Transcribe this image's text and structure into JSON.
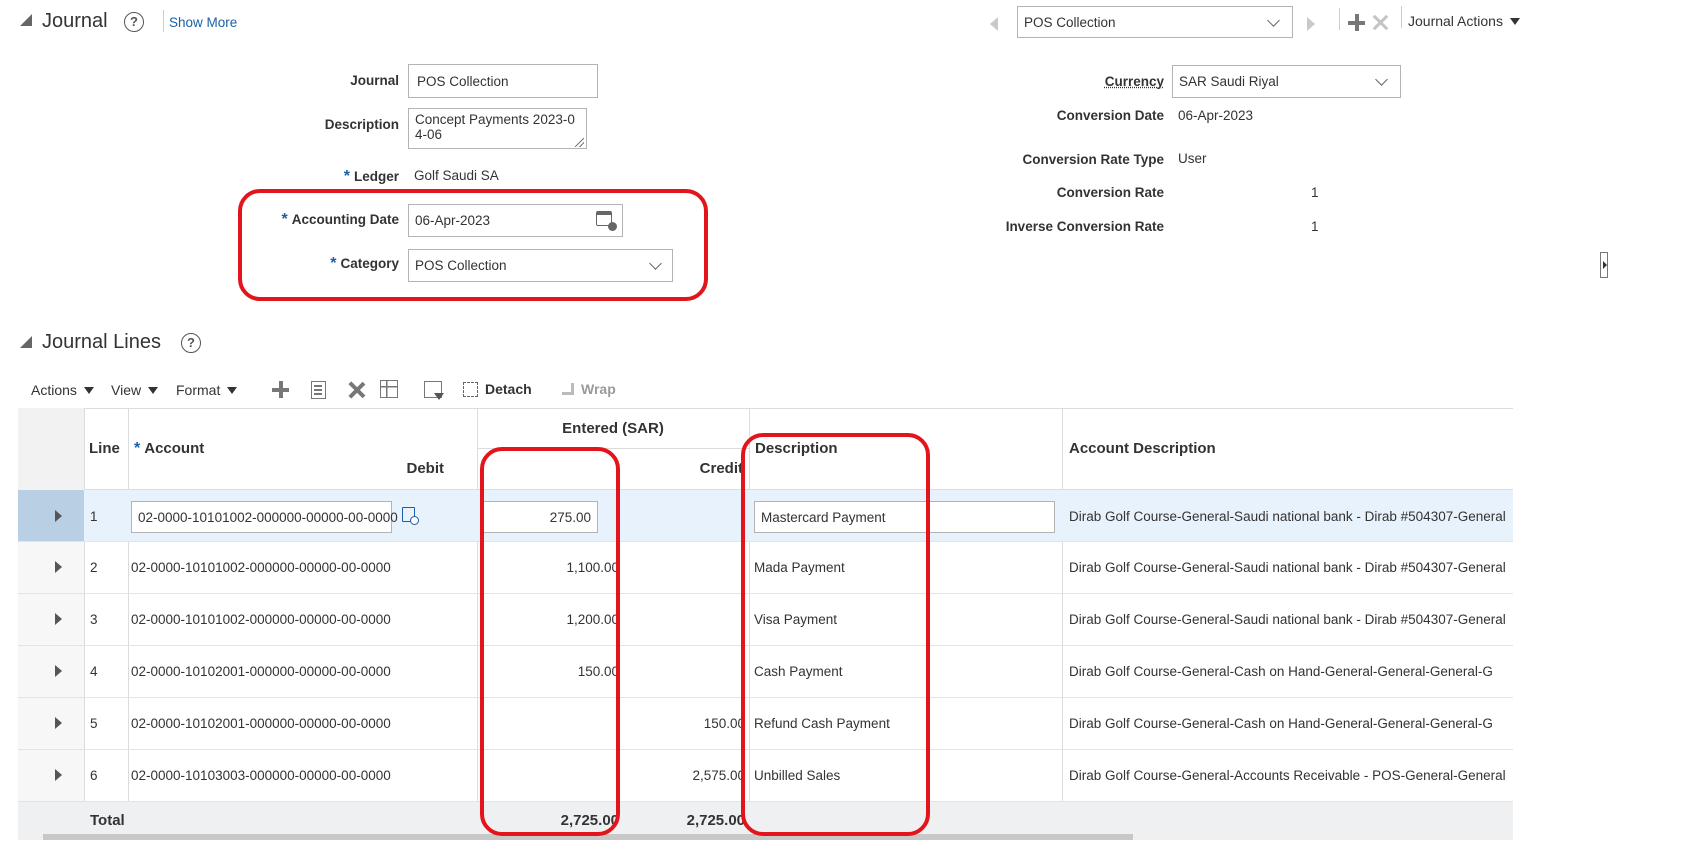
{
  "header": {
    "journal_title": "Journal",
    "help_glyph": "?",
    "show_more": "Show More",
    "batch_select_value": "POS Collection",
    "journal_actions": "Journal Actions"
  },
  "form_left": {
    "journal_label": "Journal",
    "journal_value": "POS Collection",
    "description_label": "Description",
    "description_value": "Concept Payments 2023-04-06",
    "ledger_label": "Ledger",
    "ledger_value": "Golf Saudi SA",
    "accounting_date_label": "Accounting Date",
    "accounting_date_value": "06-Apr-2023",
    "category_label": "Category",
    "category_value": "POS Collection",
    "required_mark": "*"
  },
  "form_right": {
    "currency_label": "Currency",
    "currency_value": "SAR Saudi Riyal",
    "conversion_date_label": "Conversion Date",
    "conversion_date_value": "06-Apr-2023",
    "conversion_rate_type_label": "Conversion Rate Type",
    "conversion_rate_type_value": "User",
    "conversion_rate_label": "Conversion Rate",
    "conversion_rate_value": "1",
    "inverse_conversion_rate_label": "Inverse Conversion Rate",
    "inverse_conversion_rate_value": "1"
  },
  "lines_section": {
    "title": "Journal Lines",
    "toolbar": {
      "actions": "Actions",
      "view": "View",
      "format": "Format",
      "detach": "Detach",
      "wrap": "Wrap"
    }
  },
  "table": {
    "headers": {
      "line": "Line",
      "account": "Account",
      "entered_group": "Entered (SAR)",
      "debit": "Debit",
      "credit": "Credit",
      "description": "Description",
      "account_description": "Account Description"
    },
    "rows": [
      {
        "line": "1",
        "account": "02-0000-10101002-000000-00000-00-0000",
        "debit": "275.00",
        "credit": "",
        "description": "Mastercard Payment",
        "account_description": "Dirab Golf Course-General-Saudi national bank - Dirab #504307-General"
      },
      {
        "line": "2",
        "account": "02-0000-10101002-000000-00000-00-0000",
        "debit": "1,100.00",
        "credit": "",
        "description": "Mada Payment",
        "account_description": "Dirab Golf Course-General-Saudi national bank - Dirab #504307-General"
      },
      {
        "line": "3",
        "account": "02-0000-10101002-000000-00000-00-0000",
        "debit": "1,200.00",
        "credit": "",
        "description": "Visa Payment",
        "account_description": "Dirab Golf Course-General-Saudi national bank - Dirab #504307-General"
      },
      {
        "line": "4",
        "account": "02-0000-10102001-000000-00000-00-0000",
        "debit": "150.00",
        "credit": "",
        "description": "Cash Payment",
        "account_description": "Dirab Golf Course-General-Cash on Hand-General-General-General-G"
      },
      {
        "line": "5",
        "account": "02-0000-10102001-000000-00000-00-0000",
        "debit": "",
        "credit": "150.00",
        "description": "Refund Cash Payment",
        "account_description": "Dirab Golf Course-General-Cash on Hand-General-General-General-G"
      },
      {
        "line": "6",
        "account": "02-0000-10103003-000000-00000-00-0000",
        "debit": "",
        "credit": "2,575.00",
        "description": "Unbilled Sales",
        "account_description": "Dirab Golf Course-General-Accounts Receivable - POS-General-General"
      }
    ],
    "total_label": "Total",
    "total_debit": "2,725.00",
    "total_credit": "2,725.00"
  },
  "colors": {
    "highlight": "#e3141c",
    "link": "#1b5fa6",
    "selected_row": "#e8f2fc"
  }
}
